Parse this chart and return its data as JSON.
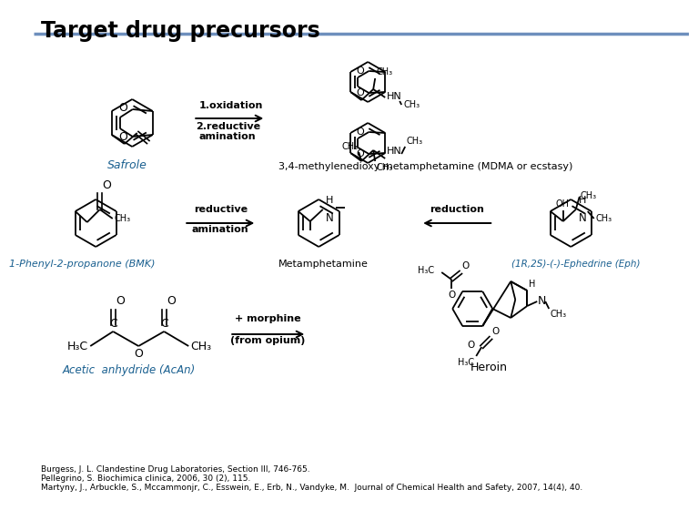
{
  "title": "Target drug precursors",
  "title_fontsize": 17,
  "background_color": "#ffffff",
  "header_line_color": "#6e8fbd",
  "ref1": "Burgess, J. L. Clandestine Drug Laboratories, Section III, 746-765.",
  "ref2": "Pellegrino, S. Biochimica clinica, 2006, 30 (2), 115.",
  "ref3": "Martyny, J., Arbuckle, S., Mccammonjr, C., Esswein, E., Erb, N., Vandyke, M.  Journal of Chemical Health and Safety, 2007, 14(4), 40.",
  "label_safrole": "Safrole",
  "label_mdma": "3,4-methylenedioxy metamphetamine (MDMA or ecstasy)",
  "label_bmk": "1-Phenyl-2-propanone (BMK)",
  "label_meth": "Metamphetamine",
  "label_eph": "(1R,2S)-(-)-Ephedrine (Eph)",
  "label_acAn": "Acetic  anhydride (AcAn)",
  "label_heroin": "Heroin",
  "arrow1_text1": "1.oxidation",
  "arrow1_text2": "2.reductive\namination"
}
